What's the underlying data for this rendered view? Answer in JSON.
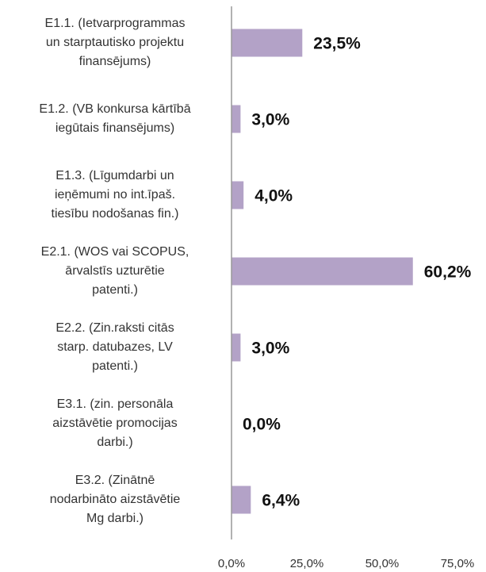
{
  "chart_data": {
    "type": "bar",
    "orientation": "horizontal",
    "categories": [
      [
        "E1.1. (Ietvarprogrammas",
        "un starptautisko projektu",
        "finansējums)"
      ],
      [
        "E1.2. (VB konkursa kārtībā",
        "iegūtais finansējums)"
      ],
      [
        "E1.3. (Līgumdarbi un",
        "ieņēmumi no int.īpaš.",
        "tiesību nodošanas fin.)"
      ],
      [
        "E2.1. (WOS vai SCOPUS,",
        "ārvalstīs uzturētie",
        "patenti.)"
      ],
      [
        "E2.2. (Zin.raksti citās",
        "starp. datubazes, LV",
        "patenti.)"
      ],
      [
        "E3.1. (zin. personāla",
        "aizstāvētie promocijas",
        "darbi.)"
      ],
      [
        "E3.2. (Zinātnē",
        "nodarbināto aizstāvētie",
        "Mg darbi.)"
      ]
    ],
    "values": [
      23.5,
      3.0,
      4.0,
      60.2,
      3.0,
      0.0,
      6.4
    ],
    "value_labels": [
      "23,5%",
      "3,0%",
      "4,0%",
      "60,2%",
      "3,0%",
      "0,0%",
      "6,4%"
    ],
    "color": "#b3a2c7",
    "xlim": [
      0,
      75
    ],
    "xticks": [
      {
        "value": 0,
        "label": "0,0%"
      },
      {
        "value": 25,
        "label": "25,0%"
      },
      {
        "value": 50,
        "label": "50,0%"
      },
      {
        "value": 75,
        "label": "75,0%"
      }
    ],
    "grid": false
  }
}
